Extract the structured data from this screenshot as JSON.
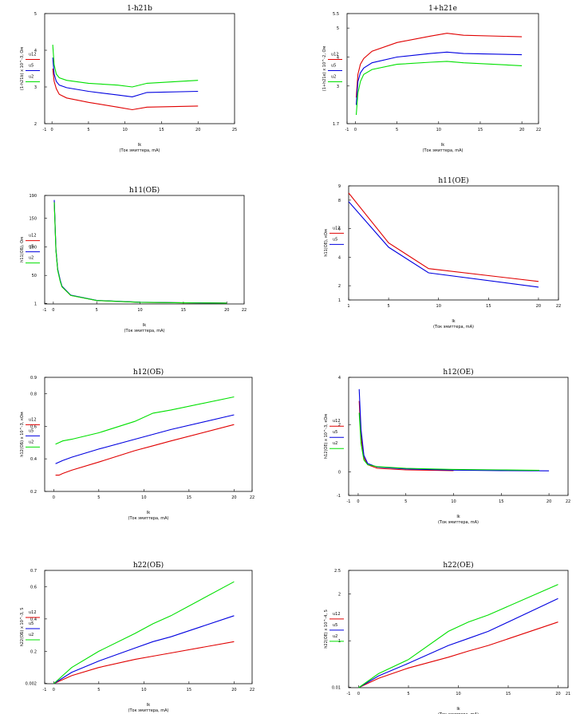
{
  "colors": {
    "red": "#e00000",
    "blue": "#0000e0",
    "green": "#00e000",
    "axis": "#000000"
  },
  "chart_data": [
    {
      "type": "line",
      "title": "1-h21b",
      "xlabel": "Ik",
      "xlabel_sub": "(Ток эмиттера, mA)",
      "ylabel": "(1-h21b)  x 10^-3, Ом",
      "xlim": [
        -1,
        25
      ],
      "ylim": [
        2,
        5
      ],
      "xticks": [
        "-1",
        "0",
        "5",
        "10",
        "15",
        "20",
        "25"
      ],
      "yticks": [
        "2",
        "3",
        "4",
        "5"
      ],
      "legend": [
        "u12",
        "u5",
        "u2"
      ],
      "series": [
        {
          "name": "u12",
          "color": "red",
          "x": [
            0.1,
            0.3,
            0.6,
            1,
            2,
            5,
            9,
            11,
            13,
            20
          ],
          "y": [
            3.5,
            3.15,
            2.95,
            2.8,
            2.7,
            2.58,
            2.45,
            2.38,
            2.45,
            2.48
          ]
        },
        {
          "name": "u5",
          "color": "blue",
          "x": [
            0.1,
            0.3,
            0.6,
            1,
            2,
            5,
            9,
            11,
            13,
            20
          ],
          "y": [
            3.8,
            3.35,
            3.15,
            3.05,
            2.98,
            2.88,
            2.78,
            2.73,
            2.85,
            2.88
          ]
        },
        {
          "name": "u2",
          "color": "green",
          "x": [
            0.1,
            0.3,
            0.6,
            1,
            2,
            5,
            9,
            11,
            13,
            20
          ],
          "y": [
            4.15,
            3.6,
            3.35,
            3.25,
            3.18,
            3.1,
            3.05,
            3.0,
            3.1,
            3.18
          ]
        }
      ]
    },
    {
      "type": "line",
      "title": "1+h21e",
      "xlabel": "Ik",
      "xlabel_sub": "(Ток эмиттера, mA)",
      "ylabel": "(1+h21e)  x 10^-2, Ом",
      "xlim": [
        -1,
        22
      ],
      "ylim": [
        1.7,
        5.5
      ],
      "xticks": [
        "-1",
        "0",
        "5",
        "10",
        "15",
        "20",
        "22"
      ],
      "yticks": [
        "1.7",
        "3",
        "4",
        "5",
        "5.5"
      ],
      "legend": [
        "u12",
        "u5",
        "u2"
      ],
      "series": [
        {
          "name": "u12",
          "color": "red",
          "x": [
            0.1,
            0.3,
            0.6,
            1,
            2,
            5,
            9,
            11,
            13,
            20
          ],
          "y": [
            2.6,
            3.4,
            3.75,
            3.95,
            4.2,
            4.5,
            4.72,
            4.82,
            4.75,
            4.7
          ]
        },
        {
          "name": "u5",
          "color": "blue",
          "x": [
            0.1,
            0.3,
            0.6,
            1,
            2,
            5,
            9,
            11,
            13,
            20
          ],
          "y": [
            2.35,
            3.15,
            3.45,
            3.62,
            3.8,
            4.0,
            4.12,
            4.17,
            4.12,
            4.08
          ]
        },
        {
          "name": "u2",
          "color": "green",
          "x": [
            0.1,
            0.3,
            0.6,
            1,
            2,
            5,
            9,
            11,
            13,
            20
          ],
          "y": [
            2.0,
            2.75,
            3.15,
            3.4,
            3.57,
            3.75,
            3.82,
            3.85,
            3.8,
            3.7
          ]
        }
      ]
    },
    {
      "type": "line",
      "title": "h11(ОБ)",
      "xlabel": "Ik",
      "xlabel_sub": "(Ток эмиттера, mA)",
      "ylabel": "h11(ОБ), Ом",
      "xlim": [
        -1,
        22
      ],
      "ylim": [
        0,
        190
      ],
      "xticks": [
        "-1",
        "0",
        "5",
        "10",
        "15",
        "20",
        "22"
      ],
      "yticks": [
        "1",
        "50",
        "100",
        "150",
        "190"
      ],
      "legend": [
        "u12",
        "u5",
        "u2"
      ],
      "series": [
        {
          "name": "u12",
          "color": "red",
          "x": [
            0.1,
            0.3,
            0.5,
            0.8,
            1,
            2,
            5,
            10,
            15,
            20
          ],
          "y": [
            180,
            95,
            60,
            40,
            30,
            15,
            6,
            3,
            2,
            1.5
          ]
        },
        {
          "name": "u5",
          "color": "blue",
          "x": [
            0.1,
            0.3,
            0.5,
            0.8,
            1,
            2,
            5,
            10,
            15,
            20
          ],
          "y": [
            182,
            96,
            61,
            41,
            31,
            15.5,
            6.2,
            3.1,
            2.1,
            1.6
          ]
        },
        {
          "name": "u2",
          "color": "green",
          "x": [
            0.1,
            0.3,
            0.5,
            0.8,
            1,
            2,
            5,
            10,
            15,
            20
          ],
          "y": [
            178,
            94,
            59,
            39,
            30,
            15,
            6,
            3,
            2,
            1.5
          ]
        }
      ]
    },
    {
      "type": "line",
      "title": "h11(ОЕ)",
      "xlabel": "Ik",
      "xlabel_sub": "(Ток эмиттера, mA)",
      "ylabel": "h11(ОЕ), кОм",
      "xlim": [
        1,
        22
      ],
      "ylim": [
        1,
        9
      ],
      "xticks": [
        "1",
        "5",
        "10",
        "15",
        "20",
        "22"
      ],
      "yticks": [
        "1",
        "2",
        "4",
        "6",
        "8",
        "9"
      ],
      "legend": [
        "u12",
        "u5"
      ],
      "series": [
        {
          "name": "u12",
          "color": "red",
          "x": [
            1,
            5,
            9,
            20
          ],
          "y": [
            8.5,
            5.0,
            3.2,
            2.3
          ]
        },
        {
          "name": "u5",
          "color": "blue",
          "x": [
            1,
            5,
            9,
            20
          ],
          "y": [
            7.9,
            4.7,
            2.9,
            1.9
          ]
        }
      ]
    },
    {
      "type": "line",
      "title": "h12(ОБ)",
      "xlabel": "Ik",
      "xlabel_sub": "(Ток эмиттера, mA)",
      "ylabel": "h12(ОБ)  x 10^-3, кОм",
      "xlim": [
        -1,
        22
      ],
      "ylim": [
        0.2,
        0.9
      ],
      "xticks": [
        "0",
        "5",
        "10",
        "15",
        "20",
        "22"
      ],
      "yticks": [
        "0.2",
        "0.4",
        "0.6",
        "0.8",
        "0.9"
      ],
      "legend": [
        "u12",
        "u5",
        "u2"
      ],
      "series": [
        {
          "name": "u12",
          "color": "red",
          "x": [
            0.2,
            0.6,
            1,
            2,
            5,
            9,
            11,
            13,
            20
          ],
          "y": [
            0.3,
            0.3,
            0.31,
            0.33,
            0.38,
            0.45,
            0.48,
            0.51,
            0.61
          ]
        },
        {
          "name": "u5",
          "color": "blue",
          "x": [
            0.2,
            0.6,
            1,
            2,
            5,
            9,
            11,
            13,
            20
          ],
          "y": [
            0.37,
            0.38,
            0.39,
            0.41,
            0.46,
            0.52,
            0.55,
            0.58,
            0.67
          ]
        },
        {
          "name": "u2",
          "color": "green",
          "x": [
            0.2,
            0.6,
            1,
            2,
            5,
            9,
            11,
            13,
            20
          ],
          "y": [
            0.49,
            0.5,
            0.51,
            0.52,
            0.56,
            0.63,
            0.68,
            0.7,
            0.78
          ]
        }
      ]
    },
    {
      "type": "line",
      "title": "h12(ОЕ)",
      "xlabel": "Ik",
      "xlabel_sub": "(Ток эмиттера, mA)",
      "ylabel": "h12(ОЕ)  x 10^-3, кОм",
      "xlim": [
        -1,
        22
      ],
      "ylim": [
        -1,
        4
      ],
      "xticks": [
        "-1",
        "0",
        "5",
        "10",
        "15",
        "20",
        "22"
      ],
      "yticks": [
        "-1",
        "0",
        "2",
        "4"
      ],
      "legend": [
        "u12",
        "u5",
        "u2"
      ],
      "series": [
        {
          "name": "u12",
          "color": "red",
          "x": [
            0.1,
            0.3,
            0.6,
            1,
            2,
            5,
            10
          ],
          "y": [
            3.0,
            1.5,
            0.6,
            0.3,
            0.15,
            0.08,
            0.05
          ]
        },
        {
          "name": "u5",
          "color": "blue",
          "x": [
            0.1,
            0.3,
            0.6,
            1,
            2,
            5,
            10,
            15,
            20
          ],
          "y": [
            3.5,
            1.8,
            0.7,
            0.35,
            0.2,
            0.12,
            0.07,
            0.05,
            0.04
          ]
        },
        {
          "name": "u2",
          "color": "green",
          "x": [
            0.1,
            0.3,
            0.6,
            1,
            2,
            5,
            10,
            15,
            19
          ],
          "y": [
            2.5,
            1.2,
            0.5,
            0.3,
            0.22,
            0.15,
            0.1,
            0.08,
            0.06
          ]
        }
      ]
    },
    {
      "type": "line",
      "title": "h22(ОБ)",
      "xlabel": "Ik",
      "xlabel_sub": "(Ток эмиттера, mA)",
      "ylabel": "h22(ОБ)  x 10^-3, S",
      "xlim": [
        -1,
        22
      ],
      "ylim": [
        0,
        0.7
      ],
      "xticks": [
        "-1",
        "0",
        "5",
        "10",
        "15",
        "20",
        "22"
      ],
      "yticks": [
        "0.002",
        "0.2",
        "0.4",
        "0.6",
        "0.7"
      ],
      "legend": [
        "u12",
        "u5",
        "u2"
      ],
      "series": [
        {
          "name": "u12",
          "color": "red",
          "x": [
            0,
            2,
            5,
            9,
            11,
            13,
            20
          ],
          "y": [
            0.0,
            0.05,
            0.1,
            0.15,
            0.17,
            0.19,
            0.26
          ]
        },
        {
          "name": "u5",
          "color": "blue",
          "x": [
            0,
            2,
            5,
            9,
            11,
            13,
            20
          ],
          "y": [
            0.0,
            0.07,
            0.14,
            0.22,
            0.26,
            0.29,
            0.42
          ]
        },
        {
          "name": "u2",
          "color": "green",
          "x": [
            0,
            2,
            5,
            9,
            11,
            13,
            20
          ],
          "y": [
            0.0,
            0.1,
            0.2,
            0.31,
            0.37,
            0.42,
            0.63
          ]
        }
      ]
    },
    {
      "type": "line",
      "title": "h22(ОЕ)",
      "xlabel": "Ik",
      "xlabel_sub": "(Ток эмиттера, mA)",
      "ylabel": "h22(ОЕ)  x 10^-4, S",
      "xlim": [
        -1,
        21
      ],
      "ylim": [
        0,
        2.5
      ],
      "xticks": [
        "-1",
        "0",
        "5",
        "10",
        "15",
        "20",
        "21"
      ],
      "yticks": [
        "0.01",
        "1",
        "2",
        "2.5"
      ],
      "legend": [
        "u12",
        "u5",
        "u2"
      ],
      "series": [
        {
          "name": "u12",
          "color": "red",
          "x": [
            0,
            2,
            5,
            9,
            11,
            13,
            20
          ],
          "y": [
            0.0,
            0.2,
            0.42,
            0.65,
            0.78,
            0.9,
            1.4
          ]
        },
        {
          "name": "u5",
          "color": "blue",
          "x": [
            0,
            2,
            5,
            9,
            11,
            13,
            20
          ],
          "y": [
            0.0,
            0.25,
            0.52,
            0.9,
            1.05,
            1.2,
            1.9
          ]
        },
        {
          "name": "u2",
          "color": "green",
          "x": [
            0,
            2,
            5,
            9,
            11,
            13,
            20
          ],
          "y": [
            0.0,
            0.3,
            0.6,
            1.2,
            1.4,
            1.55,
            2.2
          ]
        }
      ]
    }
  ]
}
